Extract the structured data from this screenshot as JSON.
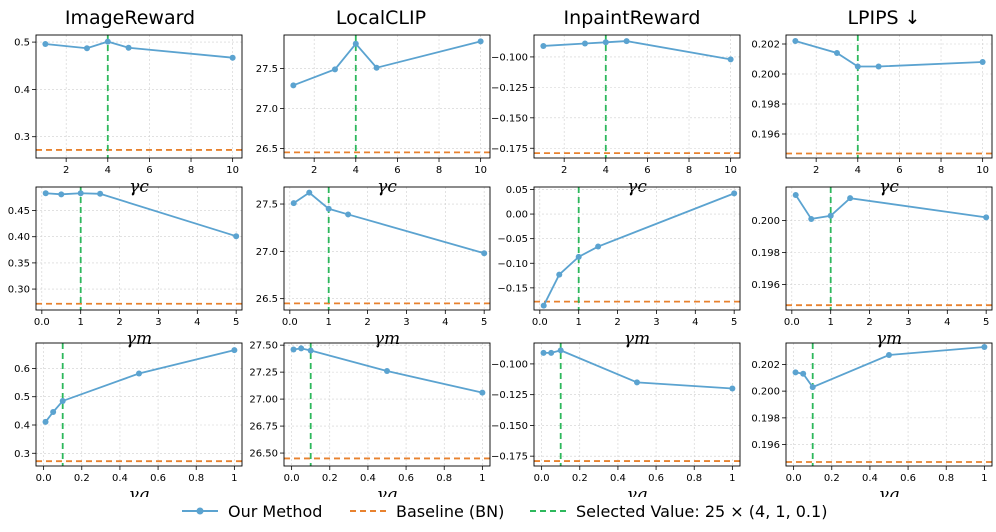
{
  "colors": {
    "method": "#5ba3d0",
    "baseline": "#e8822f",
    "selected": "#2db85c",
    "grid": "#cfcfcf"
  },
  "column_titles": [
    "ImageReward",
    "LocalCLIP",
    "InpaintReward",
    "LPIPS ↓"
  ],
  "legend": {
    "method": "Our Method",
    "baseline": "Baseline (BN)",
    "selected": "Selected Value: 25 × (4, 1, 0.1)"
  },
  "chart_data": [
    {
      "type": "line",
      "row": 0,
      "col": 0,
      "xlabel": "γc",
      "x": [
        1,
        3,
        4,
        5,
        10
      ],
      "values": [
        0.496,
        0.487,
        0.501,
        0.488,
        0.467
      ],
      "baseline": 0.272,
      "selected_x": 4,
      "xlim": [
        0.55,
        10.45
      ],
      "ylim": [
        0.255,
        0.515
      ],
      "xticks": [
        2,
        4,
        6,
        8,
        10
      ],
      "yticks": [
        0.3,
        0.4,
        0.5
      ],
      "ytick_labels": [
        "0.3",
        "0.4",
        "0.5"
      ]
    },
    {
      "type": "line",
      "row": 0,
      "col": 1,
      "xlabel": "γc",
      "x": [
        1,
        3,
        4,
        5,
        10
      ],
      "values": [
        27.29,
        27.49,
        27.81,
        27.51,
        27.84
      ],
      "baseline": 26.45,
      "selected_x": 4,
      "xlim": [
        0.55,
        10.45
      ],
      "ylim": [
        26.38,
        27.92
      ],
      "xticks": [
        2,
        4,
        6,
        8,
        10
      ],
      "yticks": [
        26.5,
        27.0,
        27.5
      ],
      "ytick_labels": [
        "26.5",
        "27.0",
        "27.5"
      ]
    },
    {
      "type": "line",
      "row": 0,
      "col": 2,
      "xlabel": "γc",
      "x": [
        1,
        3,
        4,
        5,
        10
      ],
      "values": [
        -0.091,
        -0.089,
        -0.088,
        -0.087,
        -0.102
      ],
      "baseline": -0.179,
      "selected_x": 4,
      "xlim": [
        0.55,
        10.45
      ],
      "ylim": [
        -0.183,
        -0.082
      ],
      "xticks": [
        2,
        4,
        6,
        8,
        10
      ],
      "yticks": [
        -0.175,
        -0.15,
        -0.125,
        -0.1
      ],
      "ytick_labels": [
        "−0.175",
        "−0.150",
        "−0.125",
        "−0.100"
      ]
    },
    {
      "type": "line",
      "row": 0,
      "col": 3,
      "xlabel": "γc",
      "x": [
        1,
        3,
        4,
        5,
        10
      ],
      "values": [
        0.2022,
        0.2014,
        0.2005,
        0.2005,
        0.2008
      ],
      "baseline": 0.1947,
      "selected_x": 4,
      "xlim": [
        0.55,
        10.45
      ],
      "ylim": [
        0.1944,
        0.2026
      ],
      "xticks": [
        2,
        4,
        6,
        8,
        10
      ],
      "yticks": [
        0.196,
        0.198,
        0.2,
        0.202
      ],
      "ytick_labels": [
        "0.196",
        "0.198",
        "0.200",
        "0.202"
      ]
    },
    {
      "type": "line",
      "row": 1,
      "col": 0,
      "xlabel": "γm",
      "x": [
        0.1,
        0.5,
        1,
        1.5,
        5
      ],
      "values": [
        0.483,
        0.481,
        0.483,
        0.482,
        0.401
      ],
      "baseline": 0.272,
      "selected_x": 1,
      "xlim": [
        -0.15,
        5.15
      ],
      "ylim": [
        0.26,
        0.495
      ],
      "xticks": [
        0,
        1,
        2,
        3,
        4,
        5
      ],
      "yticks": [
        0.3,
        0.35,
        0.4,
        0.45
      ],
      "ytick_labels": [
        "0.30",
        "0.35",
        "0.40",
        "0.45"
      ]
    },
    {
      "type": "line",
      "row": 1,
      "col": 1,
      "xlabel": "γm",
      "x": [
        0.1,
        0.5,
        1,
        1.5,
        5
      ],
      "values": [
        27.51,
        27.62,
        27.45,
        27.39,
        26.98
      ],
      "baseline": 26.45,
      "selected_x": 1,
      "xlim": [
        -0.15,
        5.15
      ],
      "ylim": [
        26.38,
        27.68
      ],
      "xticks": [
        0,
        1,
        2,
        3,
        4,
        5
      ],
      "yticks": [
        26.5,
        27.0,
        27.5
      ],
      "ytick_labels": [
        "26.5",
        "27.0",
        "27.5"
      ]
    },
    {
      "type": "line",
      "row": 1,
      "col": 2,
      "xlabel": "γm",
      "x": [
        0.1,
        0.5,
        1,
        1.5,
        5
      ],
      "values": [
        -0.186,
        -0.123,
        -0.087,
        -0.066,
        0.042
      ],
      "baseline": -0.178,
      "selected_x": 1,
      "xlim": [
        -0.15,
        5.15
      ],
      "ylim": [
        -0.195,
        0.055
      ],
      "xticks": [
        0,
        1,
        2,
        3,
        4,
        5
      ],
      "yticks": [
        -0.15,
        -0.1,
        -0.05,
        0.0,
        0.05
      ],
      "ytick_labels": [
        "−0.15",
        "−0.10",
        "−0.05",
        "0.00",
        "0.05"
      ]
    },
    {
      "type": "line",
      "row": 1,
      "col": 3,
      "xlabel": "γm",
      "x": [
        0.1,
        0.5,
        1,
        1.5,
        5
      ],
      "values": [
        0.2016,
        0.2001,
        0.2003,
        0.2014,
        0.2002
      ],
      "baseline": 0.1947,
      "selected_x": 1,
      "xlim": [
        -0.15,
        5.15
      ],
      "ylim": [
        0.1944,
        0.2021
      ],
      "xticks": [
        0,
        1,
        2,
        3,
        4,
        5
      ],
      "yticks": [
        0.196,
        0.198,
        0.2
      ],
      "ytick_labels": [
        "0.196",
        "0.198",
        "0.200"
      ]
    },
    {
      "type": "line",
      "row": 2,
      "col": 0,
      "xlabel": "γq",
      "x": [
        0.01,
        0.05,
        0.1,
        0.5,
        1.0
      ],
      "values": [
        0.411,
        0.446,
        0.485,
        0.582,
        0.665
      ],
      "baseline": 0.272,
      "selected_x": 0.1,
      "xlim": [
        -0.04,
        1.04
      ],
      "ylim": [
        0.255,
        0.69
      ],
      "xticks": [
        0.0,
        0.2,
        0.4,
        0.6,
        0.8,
        1.0
      ],
      "yticks": [
        0.3,
        0.4,
        0.5,
        0.6
      ],
      "ytick_labels": [
        "0.3",
        "0.4",
        "0.5",
        "0.6"
      ]
    },
    {
      "type": "line",
      "row": 2,
      "col": 1,
      "xlabel": "γq",
      "x": [
        0.01,
        0.05,
        0.1,
        0.5,
        1.0
      ],
      "values": [
        27.46,
        27.47,
        27.45,
        27.26,
        27.06
      ],
      "baseline": 26.45,
      "selected_x": 0.1,
      "xlim": [
        -0.04,
        1.04
      ],
      "ylim": [
        26.38,
        27.52
      ],
      "xticks": [
        0.0,
        0.2,
        0.4,
        0.6,
        0.8,
        1.0
      ],
      "yticks": [
        26.5,
        26.75,
        27.0,
        27.25,
        27.5
      ],
      "ytick_labels": [
        "26.50",
        "26.75",
        "27.00",
        "27.25",
        "27.50"
      ]
    },
    {
      "type": "line",
      "row": 2,
      "col": 2,
      "xlabel": "γq",
      "x": [
        0.01,
        0.05,
        0.1,
        0.5,
        1.0
      ],
      "values": [
        -0.091,
        -0.091,
        -0.089,
        -0.115,
        -0.12
      ],
      "baseline": -0.179,
      "selected_x": 0.1,
      "xlim": [
        -0.04,
        1.04
      ],
      "ylim": [
        -0.183,
        -0.083
      ],
      "xticks": [
        0.0,
        0.2,
        0.4,
        0.6,
        0.8,
        1.0
      ],
      "yticks": [
        -0.175,
        -0.15,
        -0.125,
        -0.1
      ],
      "ytick_labels": [
        "−0.175",
        "−0.150",
        "−0.125",
        "−0.100"
      ]
    },
    {
      "type": "line",
      "row": 2,
      "col": 3,
      "xlabel": "γq",
      "x": [
        0.01,
        0.05,
        0.1,
        0.5,
        1.0
      ],
      "values": [
        0.2014,
        0.2013,
        0.2003,
        0.2027,
        0.2033
      ],
      "baseline": 0.1947,
      "selected_x": 0.1,
      "xlim": [
        -0.04,
        1.04
      ],
      "ylim": [
        0.1944,
        0.2036
      ],
      "xticks": [
        0.0,
        0.2,
        0.4,
        0.6,
        0.8,
        1.0
      ],
      "yticks": [
        0.196,
        0.198,
        0.2,
        0.202
      ],
      "ytick_labels": [
        "0.196",
        "0.198",
        "0.200",
        "0.202"
      ]
    }
  ]
}
